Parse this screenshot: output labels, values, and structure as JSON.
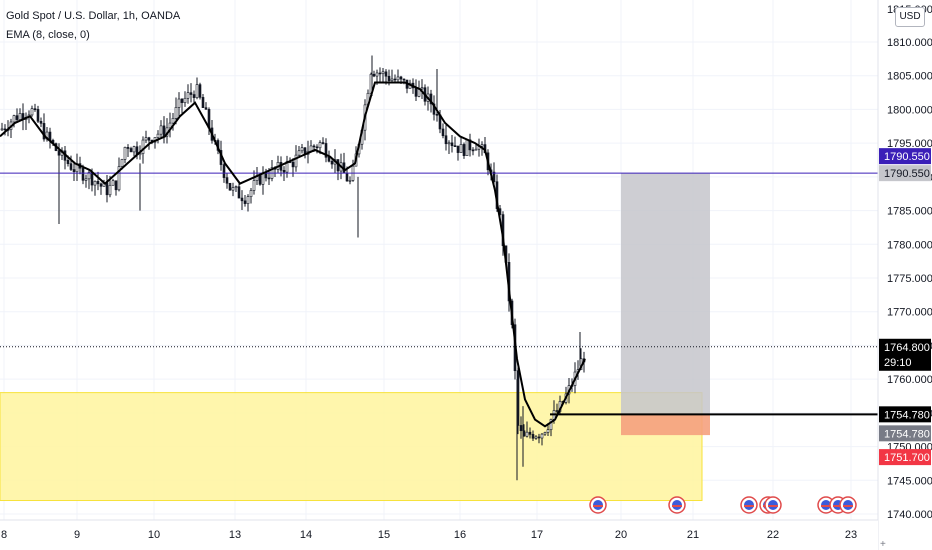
{
  "chart_data": {
    "type": "candlestick",
    "title": "Gold Spot / U.S. Dollar, 1h, OANDA",
    "indicator": "EMA (8, close, 0)",
    "currency": "USD",
    "ylim": [
      1740,
      1815
    ],
    "y_ticks": [
      1740,
      1745,
      1750,
      1755,
      1760,
      1765,
      1770,
      1775,
      1780,
      1785,
      1790,
      1795,
      1800,
      1805,
      1810
    ],
    "y_tick_labels": [
      "1740.000",
      "1745.000",
      "1750.000",
      "1755.000",
      "1760.000",
      "1765.000",
      "1770.000",
      "1775.000",
      "1780.000",
      "1785.000",
      "1790.000",
      "1795.000",
      "1800.000",
      "1805.000",
      "1810.000"
    ],
    "top_partial_label": "1815.000",
    "x_labels": [
      "8",
      "9",
      "10",
      "13",
      "14",
      "15",
      "16",
      "17",
      "20",
      "21",
      "22",
      "23"
    ],
    "price_path": [
      [
        0,
        1797
      ],
      [
        15,
        1799
      ],
      [
        30,
        1800
      ],
      [
        45,
        1796
      ],
      [
        60,
        1793
      ],
      [
        75,
        1791
      ],
      [
        90,
        1790
      ],
      [
        105,
        1788
      ],
      [
        115,
        1789
      ],
      [
        125,
        1795
      ],
      [
        135,
        1794
      ],
      [
        150,
        1796
      ],
      [
        165,
        1797
      ],
      [
        180,
        1801
      ],
      [
        195,
        1803
      ],
      [
        205,
        1799
      ],
      [
        215,
        1794
      ],
      [
        230,
        1788
      ],
      [
        245,
        1787
      ],
      [
        260,
        1790
      ],
      [
        275,
        1791
      ],
      [
        290,
        1792
      ],
      [
        305,
        1794
      ],
      [
        320,
        1795
      ],
      [
        335,
        1792
      ],
      [
        350,
        1789
      ],
      [
        360,
        1797
      ],
      [
        370,
        1806
      ],
      [
        385,
        1805
      ],
      [
        400,
        1804
      ],
      [
        415,
        1803
      ],
      [
        430,
        1801
      ],
      [
        445,
        1796
      ],
      [
        460,
        1794
      ],
      [
        475,
        1795
      ],
      [
        485,
        1793
      ],
      [
        492,
        1789
      ],
      [
        500,
        1783
      ],
      [
        506,
        1775
      ],
      [
        512,
        1766
      ],
      [
        517,
        1753
      ],
      [
        522,
        1751
      ],
      [
        530,
        1752
      ],
      [
        540,
        1752
      ],
      [
        550,
        1754
      ],
      [
        560,
        1756
      ],
      [
        570,
        1759
      ],
      [
        578,
        1762
      ],
      [
        585,
        1764
      ]
    ],
    "ema_path": [
      [
        0,
        1796
      ],
      [
        15,
        1798
      ],
      [
        30,
        1799
      ],
      [
        45,
        1796
      ],
      [
        60,
        1794
      ],
      [
        75,
        1792
      ],
      [
        90,
        1791
      ],
      [
        105,
        1789
      ],
      [
        120,
        1791
      ],
      [
        135,
        1793
      ],
      [
        150,
        1795
      ],
      [
        165,
        1796
      ],
      [
        180,
        1799
      ],
      [
        195,
        1801
      ],
      [
        210,
        1797
      ],
      [
        225,
        1792
      ],
      [
        240,
        1789
      ],
      [
        255,
        1790
      ],
      [
        270,
        1791
      ],
      [
        285,
        1792
      ],
      [
        300,
        1793
      ],
      [
        315,
        1794
      ],
      [
        330,
        1793
      ],
      [
        345,
        1791
      ],
      [
        355,
        1792
      ],
      [
        365,
        1799
      ],
      [
        375,
        1804
      ],
      [
        390,
        1804
      ],
      [
        405,
        1804
      ],
      [
        420,
        1803
      ],
      [
        432,
        1801
      ],
      [
        445,
        1798
      ],
      [
        460,
        1796
      ],
      [
        475,
        1795
      ],
      [
        485,
        1794
      ],
      [
        495,
        1788
      ],
      [
        503,
        1781
      ],
      [
        510,
        1772
      ],
      [
        517,
        1763
      ],
      [
        525,
        1757
      ],
      [
        535,
        1754
      ],
      [
        545,
        1753
      ],
      [
        555,
        1754
      ],
      [
        565,
        1757
      ],
      [
        575,
        1760
      ],
      [
        585,
        1763
      ]
    ],
    "horizontal_line": {
      "value": 1790.55,
      "label": "1790.550",
      "color": "#3a1fb8"
    },
    "current_price": {
      "value": 1764.8,
      "label": "1764.800",
      "countdown": "29:10"
    },
    "entry_line": {
      "value": 1754.78,
      "label": "1754.780"
    },
    "position": {
      "entry": 1754.78,
      "target": 1790.55,
      "stop": 1751.7,
      "entry_label": "1754.780",
      "target_label": "1790.550",
      "stop_label": "1751.700",
      "profit_color": "#c5c6cb",
      "loss_color": "#f5a17e"
    },
    "zone": {
      "low": 1742,
      "high": 1758,
      "color": "#fff59d"
    },
    "event_markers_count": 8,
    "colors": {
      "candle": "#131722",
      "ema": "#000000",
      "grid": "#f0f3fa"
    }
  },
  "controls": {
    "plus_label": "+"
  }
}
